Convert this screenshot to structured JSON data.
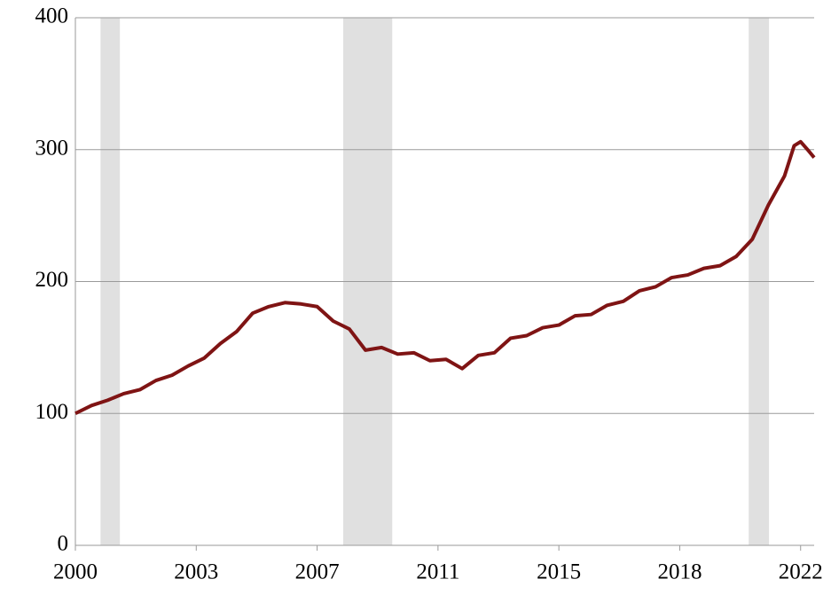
{
  "chart_data": {
    "type": "line",
    "x": [
      2000,
      2000.5,
      2001,
      2001.5,
      2002,
      2002.5,
      2003,
      2003.5,
      2004,
      2004.5,
      2005,
      2005.5,
      2006,
      2006.5,
      2007,
      2007.5,
      2008,
      2008.5,
      2009,
      2009.5,
      2010,
      2010.5,
      2011,
      2011.5,
      2012,
      2012.5,
      2013,
      2013.5,
      2014,
      2014.5,
      2015,
      2015.5,
      2016,
      2016.5,
      2017,
      2017.5,
      2018,
      2018.5,
      2019,
      2019.5,
      2020,
      2020.5,
      2021,
      2021.5,
      2022,
      2022.3,
      2022.5,
      2022.75,
      2022.92
    ],
    "series": [
      {
        "color": "#7f1414",
        "values": [
          100,
          106,
          110,
          115,
          118,
          125,
          129,
          136,
          142,
          153,
          162,
          176,
          181,
          184,
          183,
          181,
          170,
          164,
          148,
          150,
          145,
          146,
          140,
          141,
          134,
          144,
          146,
          157,
          159,
          165,
          167,
          174,
          175,
          182,
          185,
          193,
          196,
          203,
          205,
          210,
          212,
          219,
          232,
          258,
          280,
          303,
          306,
          299,
          294
        ]
      }
    ],
    "shading": {
      "color": "#e0e0e0",
      "spans": [
        [
          2000.78,
          2001.38
        ],
        [
          2008.31,
          2009.83
        ],
        [
          2020.89,
          2021.52
        ]
      ]
    },
    "xlim": [
      2000,
      2022.92
    ],
    "xticks": [
      2000,
      {
        "value": 2003.75,
        "label": "2003"
      },
      {
        "value": 2007.5,
        "label": "2007"
      },
      {
        "value": 2011.25,
        "label": "2011"
      },
      2015,
      {
        "value": 2018.75,
        "label": "2018"
      },
      {
        "value": 2022.5,
        "label": "2022"
      }
    ],
    "ylim": [
      0,
      400
    ],
    "yticks": [
      0,
      100,
      200,
      300,
      400
    ],
    "grid": true
  }
}
